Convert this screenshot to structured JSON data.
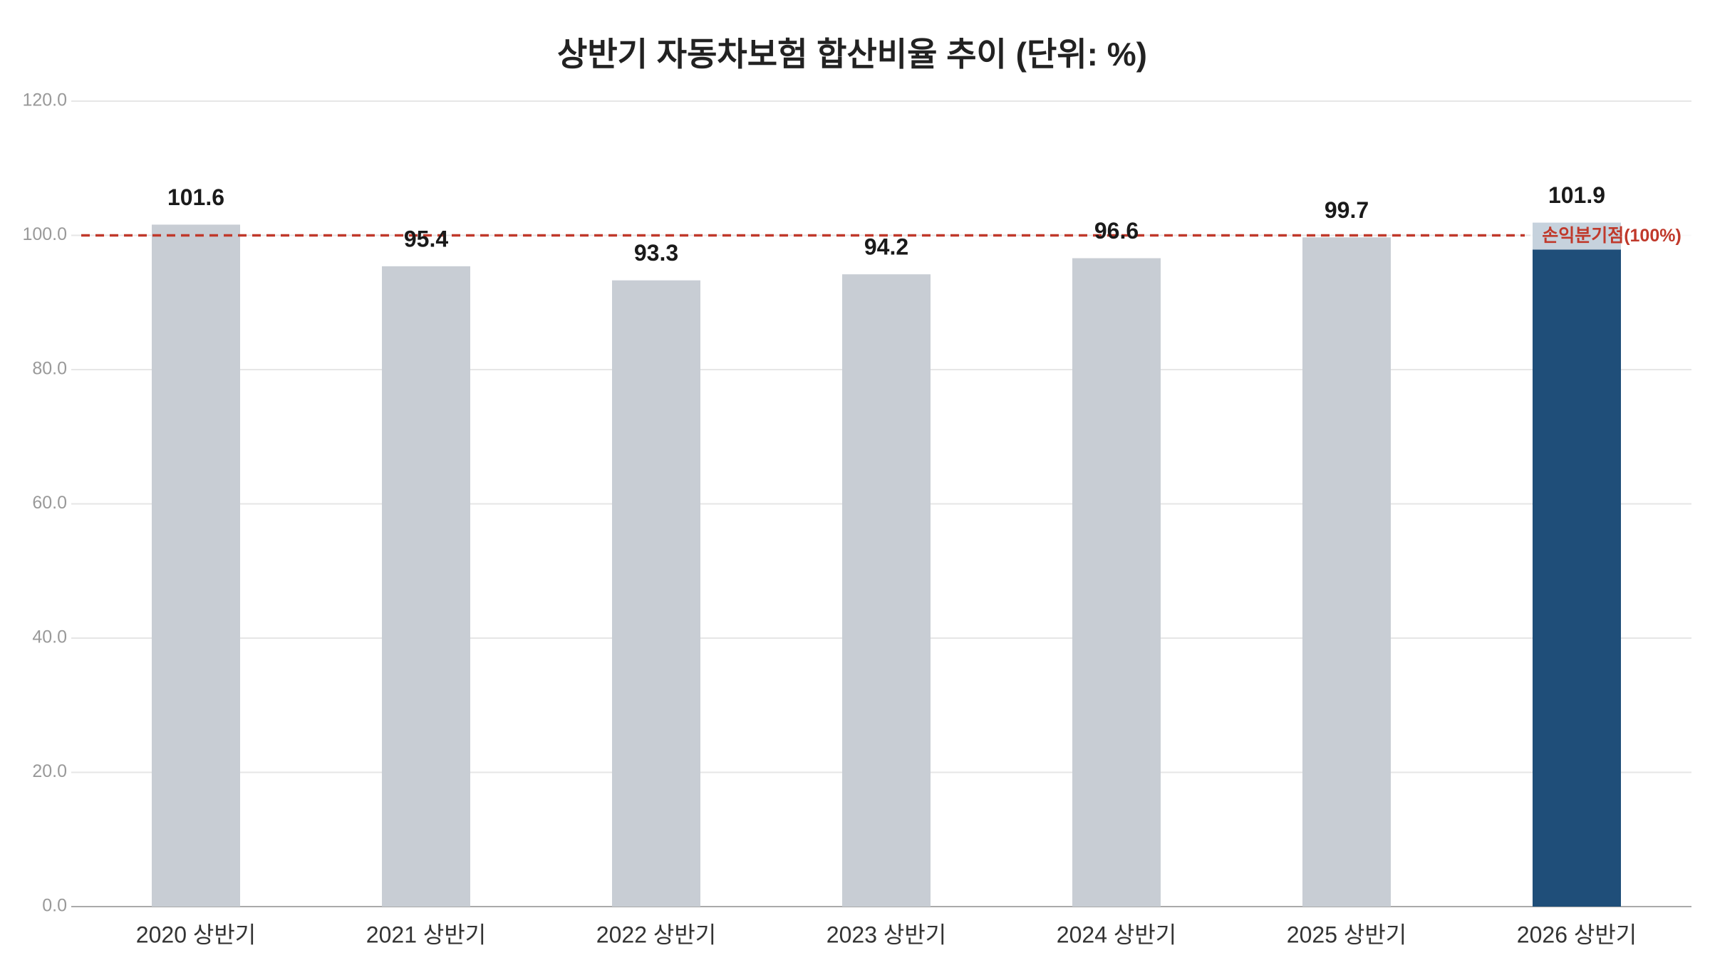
{
  "chart_data": {
    "type": "bar",
    "title": "상반기 자동차보험 합산비율 추이 (단위: %)",
    "categories": [
      "2020 상반기",
      "2021 상반기",
      "2022 상반기",
      "2023 상반기",
      "2024 상반기",
      "2025 상반기",
      "2026 상반기"
    ],
    "values": [
      101.6,
      95.4,
      93.3,
      94.2,
      96.6,
      99.7,
      101.9
    ],
    "colors": [
      "#c8cdd4",
      "#c8cdd4",
      "#c8cdd4",
      "#c8cdd4",
      "#c8cdd4",
      "#c8cdd4",
      "#1f4e79"
    ],
    "ylim": [
      0,
      120
    ],
    "yticks": [
      {
        "value": 0,
        "label": "0.0"
      },
      {
        "value": 20,
        "label": "20.0"
      },
      {
        "value": 40,
        "label": "40.0"
      },
      {
        "value": 60,
        "label": "60.0"
      },
      {
        "value": 80,
        "label": "80.0"
      },
      {
        "value": 100,
        "label": "100.0"
      },
      {
        "value": 120,
        "label": "120.0"
      }
    ],
    "grid": true,
    "reference_line": {
      "value": 100,
      "label": "손익분기점(100%)",
      "color": "#c0392b"
    }
  }
}
